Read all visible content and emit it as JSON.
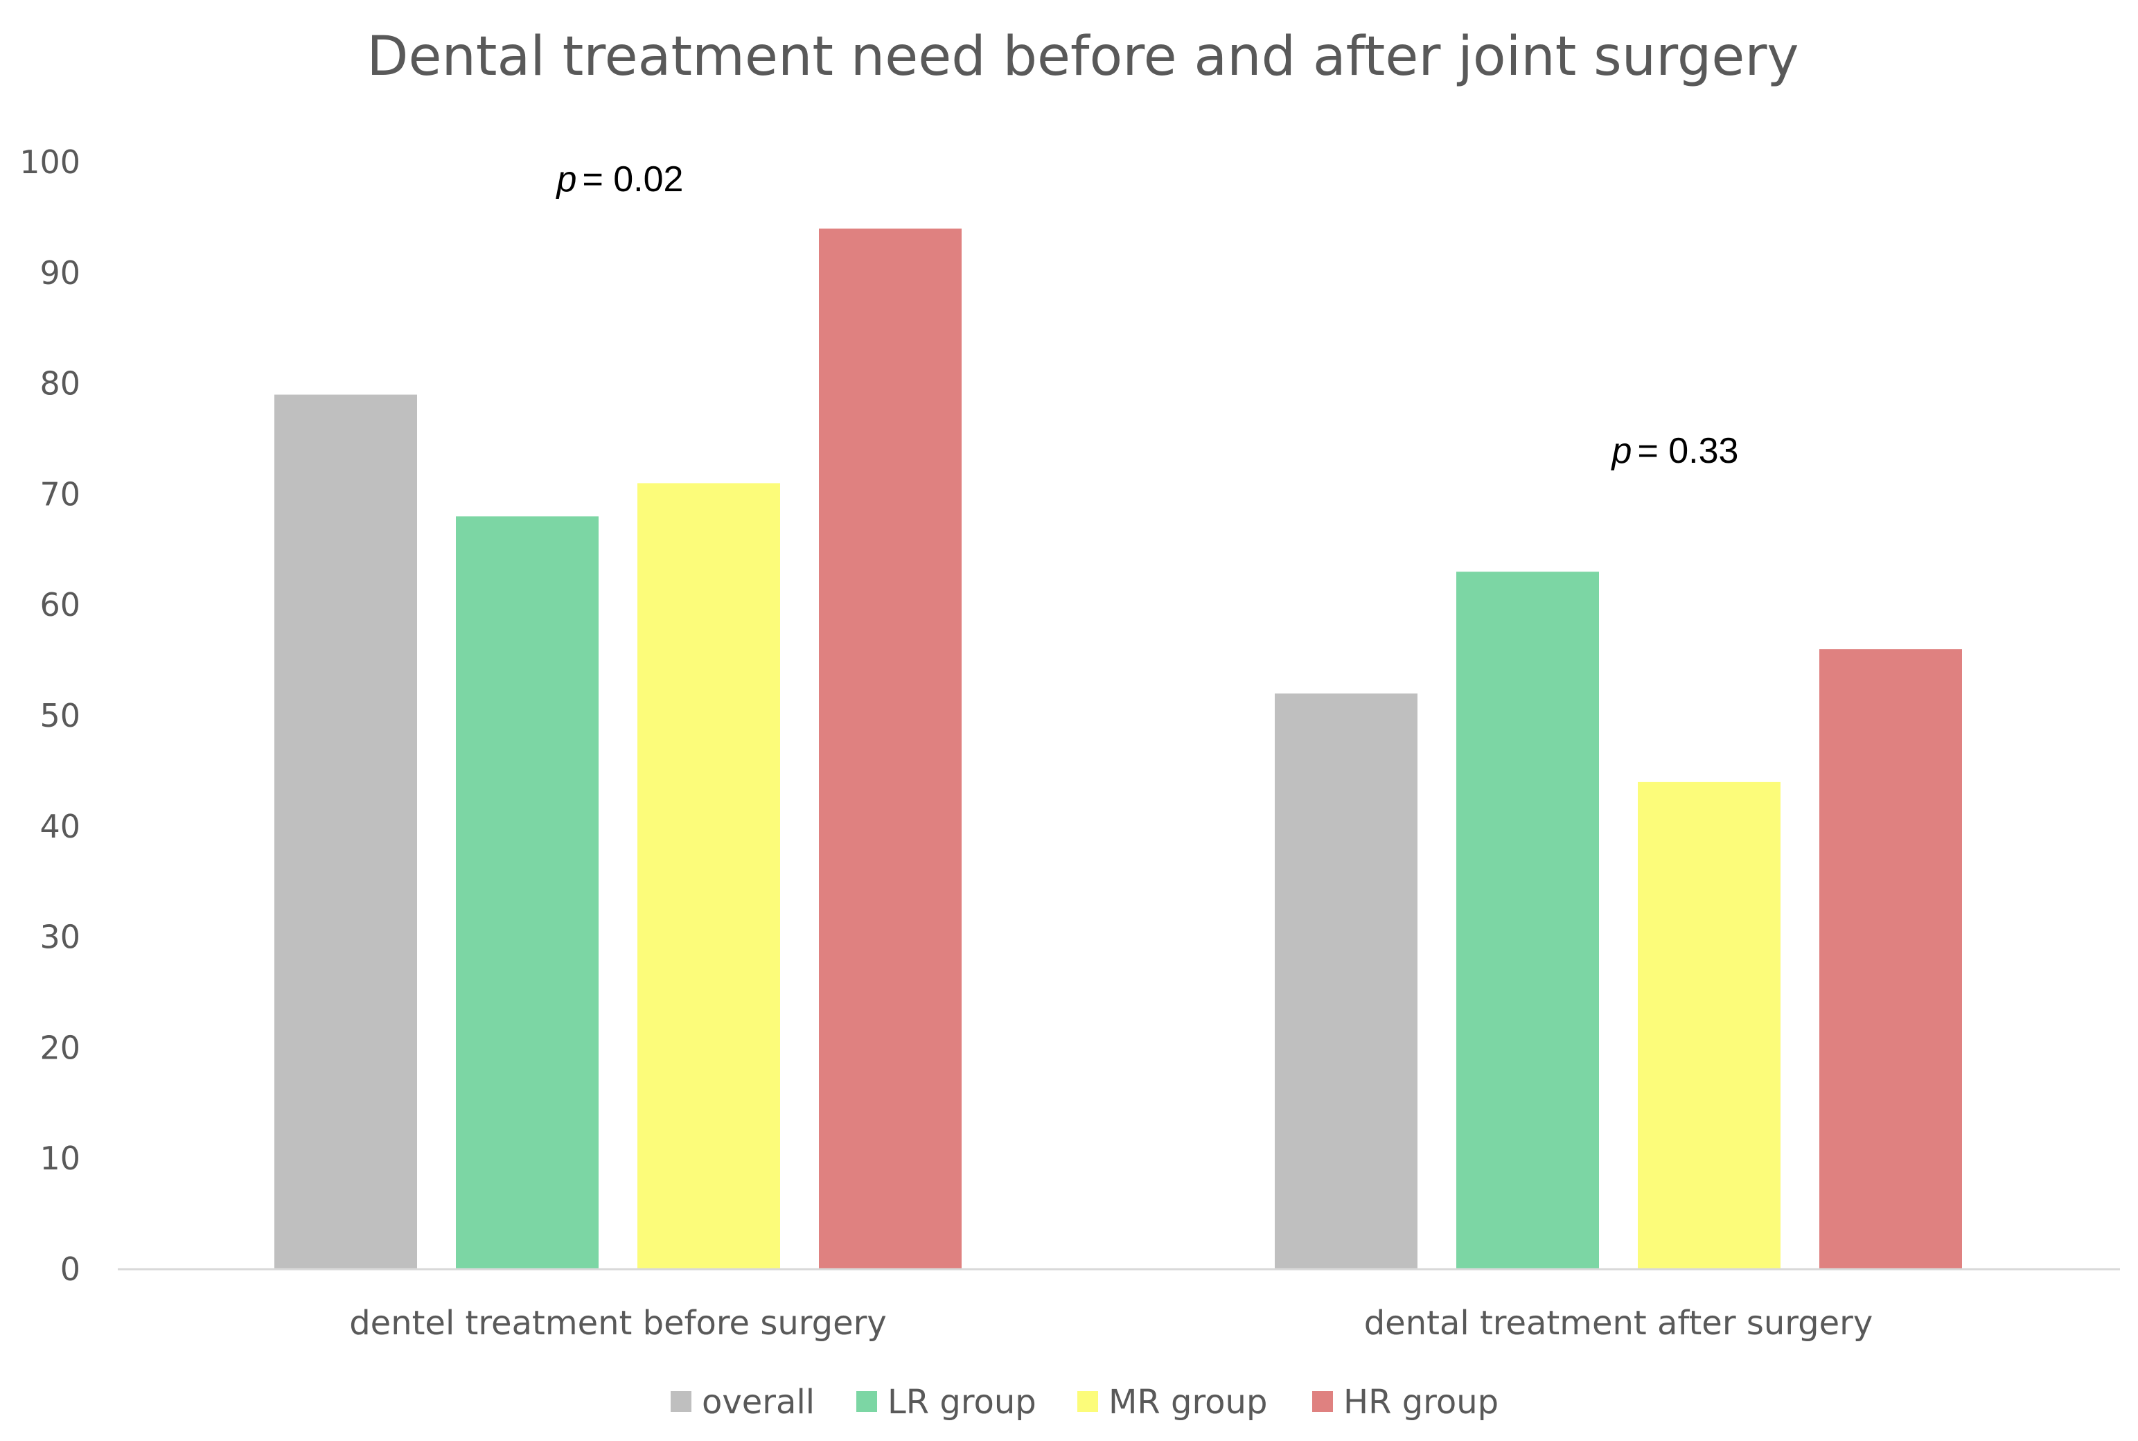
{
  "chart_data": {
    "type": "bar",
    "title": "Dental treatment need before and after joint surgery",
    "xlabel": "",
    "ylabel": "",
    "ylim": [
      0,
      100
    ],
    "yticks": [
      "0",
      "10",
      "20",
      "30",
      "40",
      "50",
      "60",
      "70",
      "80",
      "90",
      "100"
    ],
    "grid": false,
    "legend_position": "bottom",
    "categories": [
      "dentel treatment before surgery",
      "dental treatment after surgery"
    ],
    "series": [
      {
        "name": "overall",
        "values": [
          79,
          52
        ],
        "color": "#BFBFBF"
      },
      {
        "name": "LR group",
        "values": [
          68,
          63
        ],
        "color": "#7CD6A4"
      },
      {
        "name": "MR group",
        "values": [
          71,
          44
        ],
        "color": "#FCFC7A"
      },
      {
        "name": "HR group",
        "values": [
          94,
          56
        ],
        "color": "#DF8180"
      }
    ],
    "annotations": [
      {
        "p_symbol": "p",
        "text": "= 0.02",
        "category_index": 0
      },
      {
        "p_symbol": "p",
        "text": "= 0.33",
        "category_index": 1
      }
    ]
  }
}
